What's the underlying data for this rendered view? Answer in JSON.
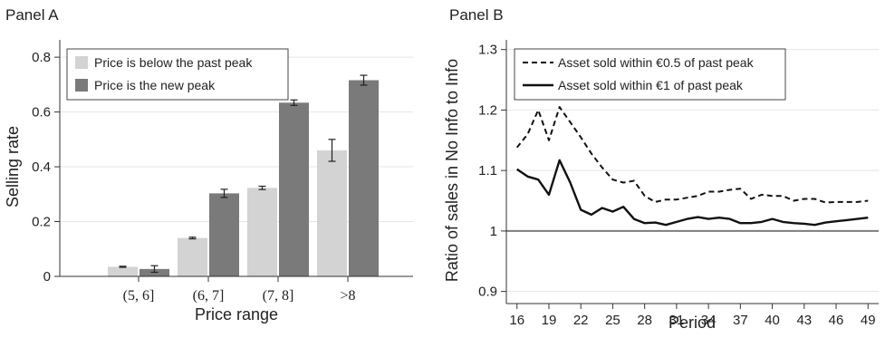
{
  "chart_data": [
    {
      "type": "bar",
      "panel_title": "Panel A",
      "title": "",
      "xlabel": "Price range",
      "ylabel": "Selling rate",
      "categories": [
        "(5, 6]",
        "(6, 7]",
        "(7, 8]",
        ">8"
      ],
      "ylim": [
        0,
        0.85
      ],
      "yticks": [
        0,
        0.2,
        0.4,
        0.6,
        0.8
      ],
      "ytick_labels": [
        "0",
        "0.2",
        "0.4",
        "0.6",
        "0.8"
      ],
      "grid": true,
      "legend_placement": "top-left",
      "series": [
        {
          "name": "Price is below the past peak",
          "color": "#d3d3d3",
          "values": [
            0.035,
            0.14,
            0.323,
            0.46
          ],
          "errors": [
            0.002,
            0.003,
            0.006,
            0.04
          ]
        },
        {
          "name": "Price is the new peak",
          "color": "#7a7a7a",
          "values": [
            0.027,
            0.303,
            0.634,
            0.716
          ],
          "errors": [
            0.012,
            0.015,
            0.01,
            0.018
          ]
        }
      ]
    },
    {
      "type": "line",
      "panel_title": "Panel B",
      "title": "",
      "xlabel": "Period",
      "ylabel": "Ratio of sales in No Info to Info",
      "xlim": [
        15,
        50
      ],
      "ylim": [
        0.88,
        1.31
      ],
      "xticks": [
        16,
        19,
        22,
        25,
        28,
        31,
        34,
        37,
        40,
        43,
        46,
        49
      ],
      "yticks": [
        0.9,
        1,
        1.1,
        1.2,
        1.3
      ],
      "ytick_labels": [
        "0.9",
        "1",
        "1.1",
        "1.2",
        "1.3"
      ],
      "reference_line": 1,
      "grid": true,
      "legend_placement": "top",
      "x": [
        16,
        17,
        18,
        19,
        20,
        21,
        22,
        23,
        24,
        25,
        26,
        27,
        28,
        29,
        30,
        31,
        32,
        33,
        34,
        35,
        36,
        37,
        38,
        39,
        40,
        41,
        42,
        43,
        44,
        45,
        46,
        47,
        48,
        49
      ],
      "series": [
        {
          "name": "Asset sold within €0.5 of past peak",
          "style": "dashed",
          "values": [
            1.138,
            1.16,
            1.2,
            1.15,
            1.205,
            1.18,
            1.155,
            1.128,
            1.105,
            1.085,
            1.08,
            1.083,
            1.058,
            1.048,
            1.052,
            1.052,
            1.055,
            1.058,
            1.065,
            1.065,
            1.068,
            1.07,
            1.053,
            1.06,
            1.058,
            1.058,
            1.05,
            1.053,
            1.053,
            1.047,
            1.048,
            1.048,
            1.048,
            1.05
          ]
        },
        {
          "name": "Asset sold within €1 of past peak",
          "style": "solid",
          "values": [
            1.102,
            1.09,
            1.085,
            1.06,
            1.117,
            1.08,
            1.035,
            1.027,
            1.038,
            1.032,
            1.04,
            1.02,
            1.013,
            1.014,
            1.01,
            1.015,
            1.02,
            1.023,
            1.02,
            1.022,
            1.02,
            1.013,
            1.013,
            1.015,
            1.02,
            1.015,
            1.013,
            1.012,
            1.01,
            1.014,
            1.016,
            1.018,
            1.02,
            1.022
          ]
        }
      ]
    }
  ]
}
